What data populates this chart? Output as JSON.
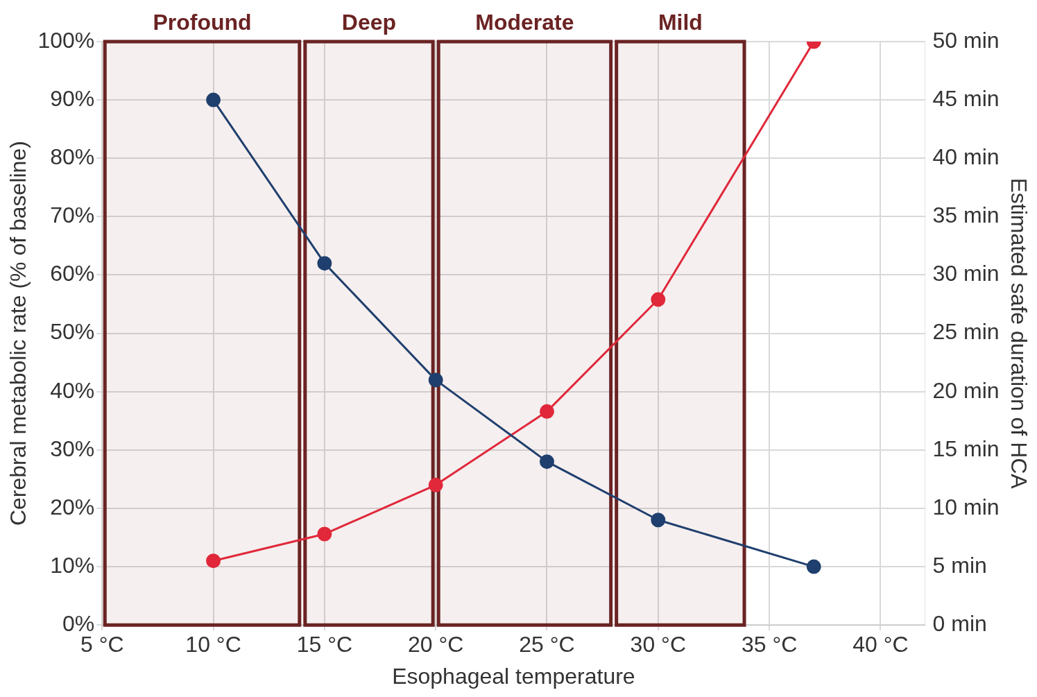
{
  "chart_data": {
    "type": "line",
    "xlabel": "Esophageal temperature",
    "ylabel": "Cerebral metabolic rate (% of baseline)",
    "y2label": "Estimated safe duration of HCA",
    "x": [
      10,
      15,
      20,
      25,
      30,
      37
    ],
    "series": [
      {
        "color": "#1f3f6e",
        "values": [
          90,
          62,
          42,
          28,
          18,
          10
        ]
      },
      {
        "color": "#e0283a",
        "axis": "y2",
        "values": [
          5.5,
          7.8,
          12,
          18.3,
          27.9,
          50
        ]
      }
    ],
    "xlim": [
      5,
      42
    ],
    "xticks": [
      {
        "value": 5,
        "label": "5 °C"
      },
      {
        "value": 10,
        "label": "10 °C"
      },
      {
        "value": 15,
        "label": "15 °C"
      },
      {
        "value": 20,
        "label": "20 °C"
      },
      {
        "value": 25,
        "label": "25 °C"
      },
      {
        "value": 30,
        "label": "30 °C"
      },
      {
        "value": 35,
        "label": "35 °C"
      },
      {
        "value": 40,
        "label": "40 °C"
      }
    ],
    "ylim": [
      0,
      100
    ],
    "yticks": [
      {
        "value": 0,
        "label": "0%"
      },
      {
        "value": 10,
        "label": "10%"
      },
      {
        "value": 20,
        "label": "20%"
      },
      {
        "value": 30,
        "label": "30%"
      },
      {
        "value": 40,
        "label": "40%"
      },
      {
        "value": 50,
        "label": "50%"
      },
      {
        "value": 60,
        "label": "60%"
      },
      {
        "value": 70,
        "label": "70%"
      },
      {
        "value": 80,
        "label": "80%"
      },
      {
        "value": 90,
        "label": "90%"
      },
      {
        "value": 100,
        "label": "100%"
      }
    ],
    "y2lim": [
      0,
      50
    ],
    "y2ticks": [
      {
        "value": 0,
        "label": "0 min"
      },
      {
        "value": 5,
        "label": "5 min"
      },
      {
        "value": 10,
        "label": "10 min"
      },
      {
        "value": 15,
        "label": "15 min"
      },
      {
        "value": 20,
        "label": "20 min"
      },
      {
        "value": 25,
        "label": "25 min"
      },
      {
        "value": 30,
        "label": "30 min"
      },
      {
        "value": 35,
        "label": "35 min"
      },
      {
        "value": 40,
        "label": "40 min"
      },
      {
        "value": 45,
        "label": "45 min"
      },
      {
        "value": 50,
        "label": "50 min"
      }
    ],
    "bands": [
      {
        "axis": "x",
        "from": 5,
        "to": 14,
        "label": "Profound",
        "color": "#6b2323"
      },
      {
        "axis": "x",
        "from": 14,
        "to": 20,
        "label": "Deep",
        "color": "#6b2323"
      },
      {
        "axis": "x",
        "from": 20,
        "to": 28,
        "label": "Moderate",
        "color": "#6b2323"
      },
      {
        "axis": "x",
        "from": 28,
        "to": 34,
        "label": "Mild",
        "color": "#6b2323"
      }
    ],
    "grid": true,
    "marker": "circle",
    "line_style": "solid",
    "legend": false
  }
}
